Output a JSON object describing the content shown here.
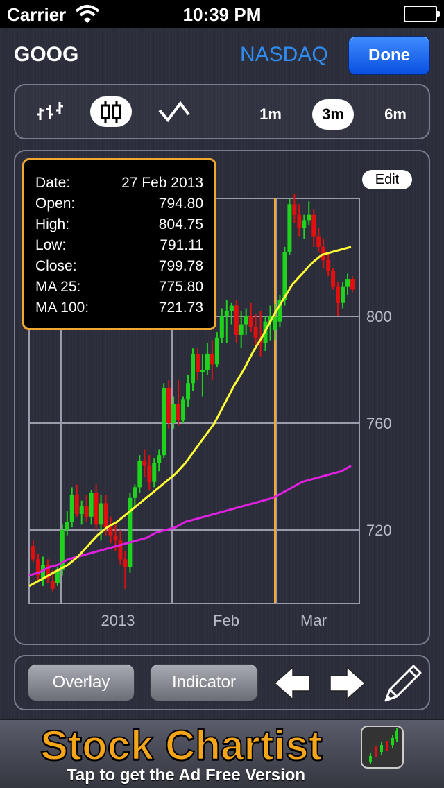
{
  "status_bar": {
    "carrier": "Carrier",
    "time": "10:39 PM"
  },
  "nav": {
    "symbol": "GOOG",
    "exchange": "NASDAQ",
    "done_label": "Done"
  },
  "toolbar": {
    "chart_types": [
      {
        "name": "ohlc-icon",
        "active": false
      },
      {
        "name": "candlestick-icon",
        "active": true
      },
      {
        "name": "line-icon",
        "active": false
      }
    ],
    "ranges": [
      {
        "label": "1m",
        "active": false
      },
      {
        "label": "3m",
        "active": true
      },
      {
        "label": "6m",
        "active": false
      }
    ]
  },
  "chart": {
    "edit_label": "Edit",
    "info": {
      "date_label": "Date:",
      "date_value": "27 Feb 2013",
      "open_label": "Open:",
      "open_value": "794.80",
      "high_label": "High:",
      "high_value": "804.75",
      "low_label": "Low:",
      "low_value": "791.11",
      "close_label": "Close:",
      "close_value": "799.78",
      "ma25_label": "MA 25:",
      "ma25_value": "775.80",
      "ma100_label": "MA 100:",
      "ma100_value": "721.73"
    },
    "colors": {
      "up": "#1ed21e",
      "down": "#e01010",
      "ma25": "#ffff33",
      "ma100": "#e020e0",
      "cursor": "#f0a830"
    }
  },
  "chart_data": {
    "type": "candlestick",
    "y_ticks": [
      720,
      760,
      800
    ],
    "x_tick_labels": [
      "2013",
      "Feb",
      "Mar"
    ],
    "ylim": [
      695,
      855
    ],
    "grid": true,
    "candles": [
      {
        "o": 714,
        "h": 716,
        "l": 708,
        "c": 709
      },
      {
        "o": 709,
        "h": 711,
        "l": 701,
        "c": 703
      },
      {
        "o": 702,
        "h": 710,
        "l": 699,
        "c": 707
      },
      {
        "o": 707,
        "h": 709,
        "l": 700,
        "c": 702
      },
      {
        "o": 701,
        "h": 705,
        "l": 697,
        "c": 698
      },
      {
        "o": 700,
        "h": 706,
        "l": 699,
        "c": 705
      },
      {
        "o": 705,
        "h": 722,
        "l": 703,
        "c": 720
      },
      {
        "o": 720,
        "h": 727,
        "l": 718,
        "c": 723
      },
      {
        "o": 723,
        "h": 736,
        "l": 721,
        "c": 733
      },
      {
        "o": 733,
        "h": 737,
        "l": 725,
        "c": 726
      },
      {
        "o": 726,
        "h": 731,
        "l": 722,
        "c": 729
      },
      {
        "o": 729,
        "h": 733,
        "l": 723,
        "c": 725
      },
      {
        "o": 725,
        "h": 735,
        "l": 722,
        "c": 734
      },
      {
        "o": 734,
        "h": 737,
        "l": 720,
        "c": 722
      },
      {
        "o": 722,
        "h": 733,
        "l": 716,
        "c": 730
      },
      {
        "o": 730,
        "h": 733,
        "l": 718,
        "c": 721
      },
      {
        "o": 721,
        "h": 725,
        "l": 715,
        "c": 718
      },
      {
        "o": 718,
        "h": 722,
        "l": 712,
        "c": 716
      },
      {
        "o": 716,
        "h": 720,
        "l": 707,
        "c": 709
      },
      {
        "o": 709,
        "h": 712,
        "l": 698,
        "c": 706
      },
      {
        "o": 706,
        "h": 734,
        "l": 704,
        "c": 732
      },
      {
        "o": 732,
        "h": 737,
        "l": 728,
        "c": 736
      },
      {
        "o": 736,
        "h": 748,
        "l": 734,
        "c": 746
      },
      {
        "o": 746,
        "h": 750,
        "l": 740,
        "c": 744
      },
      {
        "o": 744,
        "h": 748,
        "l": 735,
        "c": 738
      },
      {
        "o": 738,
        "h": 747,
        "l": 736,
        "c": 745
      },
      {
        "o": 745,
        "h": 750,
        "l": 742,
        "c": 748
      },
      {
        "o": 748,
        "h": 775,
        "l": 747,
        "c": 773
      },
      {
        "o": 773,
        "h": 776,
        "l": 758,
        "c": 760
      },
      {
        "o": 760,
        "h": 770,
        "l": 758,
        "c": 767
      },
      {
        "o": 767,
        "h": 776,
        "l": 759,
        "c": 761
      },
      {
        "o": 761,
        "h": 770,
        "l": 760,
        "c": 769
      },
      {
        "o": 769,
        "h": 778,
        "l": 766,
        "c": 775
      },
      {
        "o": 775,
        "h": 788,
        "l": 772,
        "c": 786
      },
      {
        "o": 786,
        "h": 788,
        "l": 776,
        "c": 779
      },
      {
        "o": 779,
        "h": 786,
        "l": 770,
        "c": 780
      },
      {
        "o": 780,
        "h": 790,
        "l": 778,
        "c": 786
      },
      {
        "o": 786,
        "h": 791,
        "l": 776,
        "c": 782
      },
      {
        "o": 782,
        "h": 794,
        "l": 781,
        "c": 792
      },
      {
        "o": 792,
        "h": 803,
        "l": 790,
        "c": 800
      },
      {
        "o": 800,
        "h": 806,
        "l": 790,
        "c": 802
      },
      {
        "o": 802,
        "h": 805,
        "l": 797,
        "c": 804
      },
      {
        "o": 804,
        "h": 806,
        "l": 790,
        "c": 793
      },
      {
        "o": 793,
        "h": 802,
        "l": 788,
        "c": 797
      },
      {
        "o": 797,
        "h": 803,
        "l": 793,
        "c": 800
      },
      {
        "o": 800,
        "h": 805,
        "l": 794,
        "c": 796
      },
      {
        "o": 796,
        "h": 801,
        "l": 789,
        "c": 792
      },
      {
        "o": 792,
        "h": 802,
        "l": 785,
        "c": 790
      },
      {
        "o": 790,
        "h": 800,
        "l": 787,
        "c": 798
      },
      {
        "o": 798,
        "h": 804,
        "l": 791,
        "c": 800
      },
      {
        "o": 794.8,
        "h": 804.75,
        "l": 791.11,
        "c": 799.78
      },
      {
        "o": 798,
        "h": 808,
        "l": 796,
        "c": 806
      },
      {
        "o": 806,
        "h": 826,
        "l": 804,
        "c": 824
      },
      {
        "o": 824,
        "h": 844,
        "l": 823,
        "c": 842
      },
      {
        "o": 842,
        "h": 846,
        "l": 835,
        "c": 838
      },
      {
        "o": 838,
        "h": 842,
        "l": 830,
        "c": 833
      },
      {
        "o": 833,
        "h": 838,
        "l": 829,
        "c": 836
      },
      {
        "o": 836,
        "h": 843,
        "l": 834,
        "c": 838
      },
      {
        "o": 838,
        "h": 840,
        "l": 826,
        "c": 830
      },
      {
        "o": 830,
        "h": 833,
        "l": 824,
        "c": 826
      },
      {
        "o": 826,
        "h": 829,
        "l": 818,
        "c": 821
      },
      {
        "o": 821,
        "h": 824,
        "l": 815,
        "c": 817
      },
      {
        "o": 817,
        "h": 818,
        "l": 810,
        "c": 811
      },
      {
        "o": 811,
        "h": 813,
        "l": 800,
        "c": 805
      },
      {
        "o": 805,
        "h": 813,
        "l": 803,
        "c": 811
      },
      {
        "o": 811,
        "h": 816,
        "l": 808,
        "c": 814
      },
      {
        "o": 814,
        "h": 815,
        "l": 809,
        "c": 810
      }
    ],
    "ma25": [
      699,
      701,
      703,
      705,
      707,
      710,
      714,
      718,
      721,
      723,
      726,
      729,
      732,
      735,
      738,
      741,
      745,
      750,
      755,
      760,
      767,
      774,
      780,
      787,
      793,
      800,
      806,
      812,
      816,
      820,
      823,
      824,
      825,
      826
    ],
    "ma100": [
      703,
      704,
      706,
      707,
      709,
      710,
      711,
      712,
      713,
      714,
      715,
      716,
      717,
      719,
      720,
      721,
      723,
      724,
      725,
      726,
      727,
      728,
      729,
      730,
      731,
      732,
      734,
      736,
      738,
      739,
      740,
      741,
      742,
      744
    ],
    "cursor_index": 50
  },
  "bottom_bar": {
    "overlay_label": "Overlay",
    "indicator_label": "Indicator"
  },
  "ad": {
    "title": "Stock Chartist",
    "subtitle": "Tap to get the Ad Free Version"
  }
}
